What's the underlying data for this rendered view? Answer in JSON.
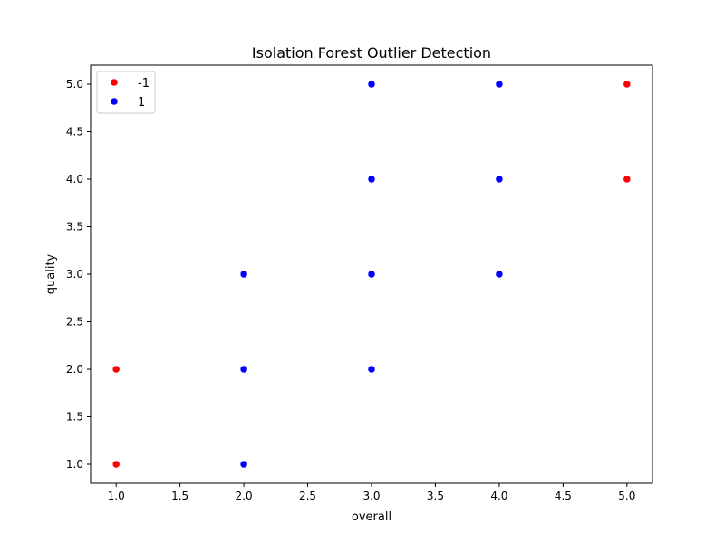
{
  "chart_data": {
    "type": "scatter",
    "title": "Isolation Forest Outlier Detection",
    "xlabel": "overall",
    "ylabel": "quality",
    "xlim": [
      0.8,
      5.2
    ],
    "ylim": [
      0.8,
      5.2
    ],
    "x_ticks": [
      "1.0",
      "1.5",
      "2.0",
      "2.5",
      "3.0",
      "3.5",
      "4.0",
      "4.5",
      "5.0"
    ],
    "y_ticks": [
      "1.0",
      "1.5",
      "2.0",
      "2.5",
      "3.0",
      "3.5",
      "4.0",
      "4.5",
      "5.0"
    ],
    "grid": false,
    "legend_position": "top-left",
    "series": [
      {
        "name": "-1",
        "color": "#ff0000",
        "points": [
          {
            "x": 1,
            "y": 1
          },
          {
            "x": 1,
            "y": 2
          },
          {
            "x": 5,
            "y": 4
          },
          {
            "x": 5,
            "y": 5
          }
        ]
      },
      {
        "name": "1",
        "color": "#0000ff",
        "points": [
          {
            "x": 2,
            "y": 1
          },
          {
            "x": 2,
            "y": 2
          },
          {
            "x": 2,
            "y": 3
          },
          {
            "x": 3,
            "y": 2
          },
          {
            "x": 3,
            "y": 3
          },
          {
            "x": 3,
            "y": 4
          },
          {
            "x": 3,
            "y": 5
          },
          {
            "x": 4,
            "y": 3
          },
          {
            "x": 4,
            "y": 4
          },
          {
            "x": 4,
            "y": 5
          }
        ]
      }
    ]
  }
}
